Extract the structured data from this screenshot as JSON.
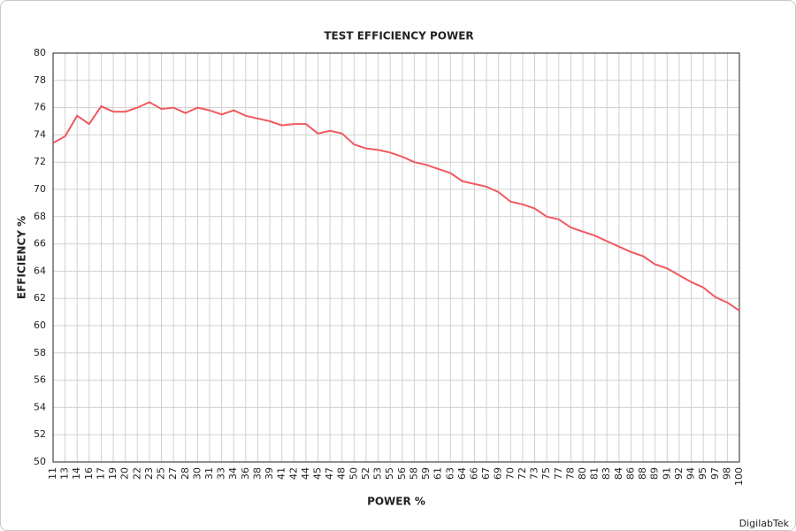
{
  "chart_data": {
    "type": "line",
    "title": "TEST EFFICIENCY POWER",
    "x_label": "POWER %",
    "y_label": "EFFICIENCY %",
    "watermark": "DigilabTek",
    "categories": [
      "11",
      "13",
      "14",
      "16",
      "17",
      "19",
      "20",
      "22",
      "23",
      "25",
      "27",
      "28",
      "30",
      "31",
      "33",
      "34",
      "36",
      "38",
      "39",
      "41",
      "42",
      "44",
      "45",
      "47",
      "48",
      "50",
      "52",
      "53",
      "55",
      "56",
      "58",
      "59",
      "61",
      "63",
      "64",
      "66",
      "67",
      "69",
      "70",
      "72",
      "73",
      "75",
      "77",
      "78",
      "80",
      "81",
      "83",
      "84",
      "86",
      "88",
      "89",
      "91",
      "92",
      "94",
      "95",
      "97",
      "98",
      "100"
    ],
    "series": [
      {
        "name": "Efficiency",
        "color": "#f0595f",
        "values": [
          73.4,
          73.9,
          75.4,
          74.8,
          76.1,
          75.7,
          75.7,
          76.0,
          76.4,
          75.9,
          76.0,
          75.6,
          76.0,
          75.8,
          75.5,
          75.8,
          75.4,
          75.2,
          75.0,
          74.7,
          74.8,
          74.8,
          74.1,
          74.3,
          74.1,
          73.3,
          73.0,
          72.9,
          72.7,
          72.4,
          72.0,
          71.8,
          71.5,
          71.2,
          70.6,
          70.4,
          70.2,
          69.8,
          69.1,
          68.9,
          68.6,
          68.0,
          67.8,
          67.2,
          66.9,
          66.6,
          66.2,
          65.8,
          65.4,
          65.1,
          64.5,
          64.2,
          63.7,
          63.2,
          62.8,
          62.1,
          61.7,
          61.1
        ]
      }
    ],
    "ylim": [
      50,
      80
    ],
    "yticks": [
      50,
      52,
      54,
      56,
      58,
      60,
      62,
      64,
      66,
      68,
      70,
      72,
      74,
      76,
      78,
      80
    ],
    "grid": true
  }
}
